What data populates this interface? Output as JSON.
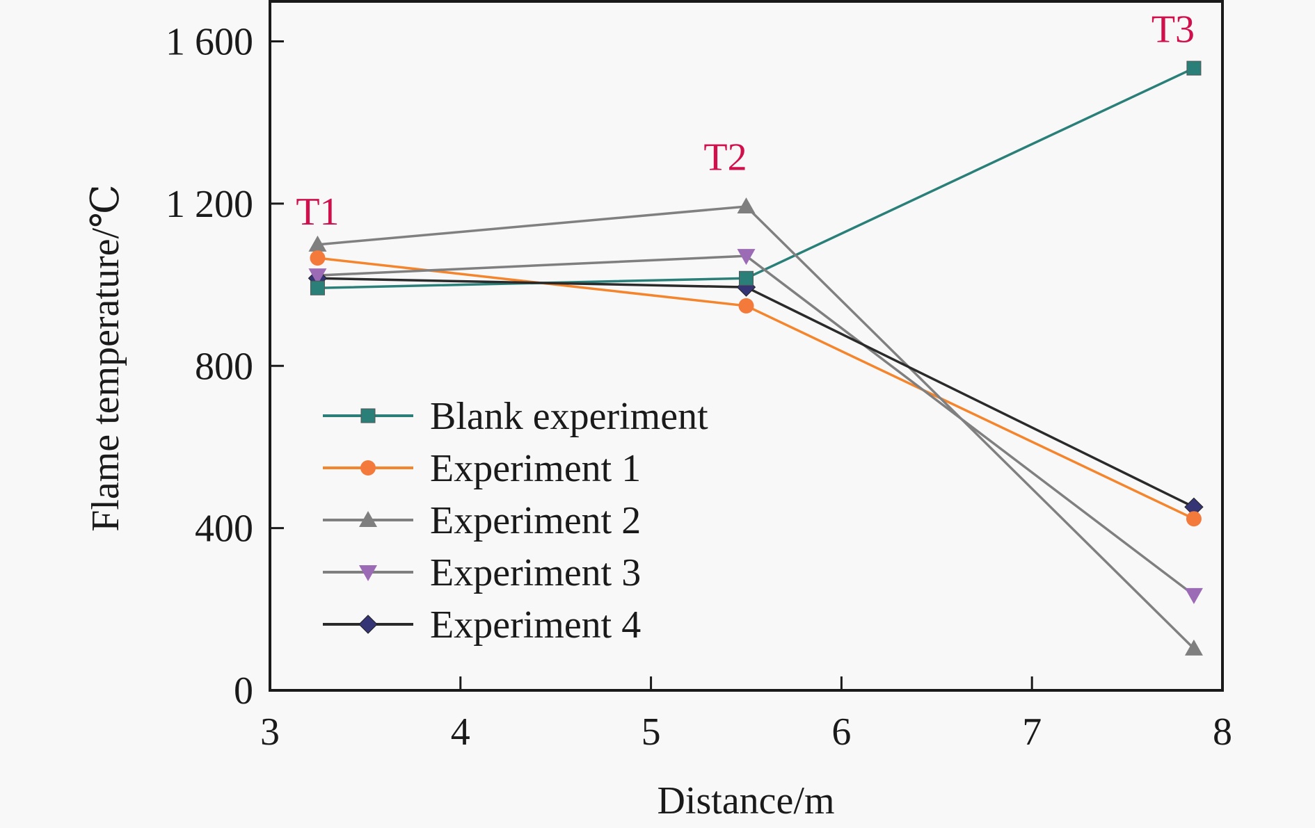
{
  "chart_data": {
    "type": "line",
    "title": "",
    "xlabel": "Distance/m",
    "ylabel": "Flame temperature/℃",
    "xlim": [
      3,
      8
    ],
    "ylim": [
      0,
      1700
    ],
    "xticks": [
      3,
      4,
      5,
      6,
      7,
      8
    ],
    "xtick_labels": [
      "3",
      "4",
      "5",
      "6",
      "7",
      "8"
    ],
    "yticks": [
      0,
      400,
      800,
      1200,
      1600
    ],
    "ytick_labels": [
      "0",
      "400",
      "800",
      "1 200",
      "1 600"
    ],
    "grid": false,
    "legend_position": "center-left",
    "x": [
      3.25,
      5.5,
      7.85
    ],
    "annotations": [
      {
        "text": "T1",
        "x": 3.25,
        "y": 1200
      },
      {
        "text": "T2",
        "x": 5.5,
        "y": 1300
      },
      {
        "text": "T3",
        "x": 7.85,
        "y": 1650
      }
    ],
    "series": [
      {
        "name": "Blank experiment",
        "marker": "square",
        "color": "#2a8079",
        "line_color": "#2a8079",
        "values": [
          992,
          1016,
          1534
        ]
      },
      {
        "name": "Experiment 1",
        "marker": "circle",
        "color": "#f47a3c",
        "line_color": "#f4852c",
        "values": [
          1066,
          948,
          423
        ]
      },
      {
        "name": "Experiment 2",
        "marker": "triangle-up",
        "color": "#7f7f7f",
        "line_color": "#808080",
        "values": [
          1099,
          1193,
          103
        ]
      },
      {
        "name": "Experiment 3",
        "marker": "triangle-down",
        "color": "#9c6bb5",
        "line_color": "#7f7f7f",
        "values": [
          1023,
          1071,
          235
        ]
      },
      {
        "name": "Experiment 4",
        "marker": "diamond",
        "color": "#353575",
        "line_color": "#2a2a2a",
        "values": [
          1016,
          994,
          452
        ]
      }
    ]
  }
}
